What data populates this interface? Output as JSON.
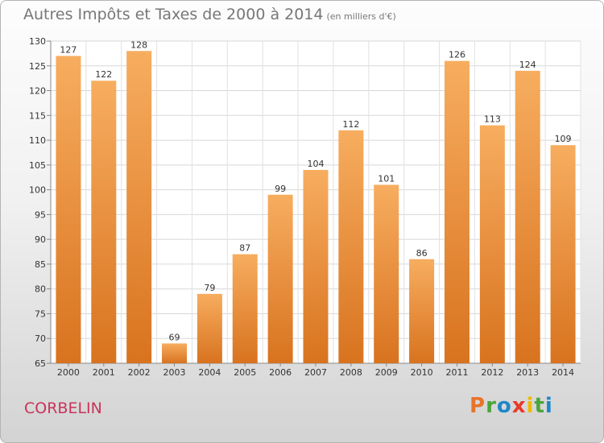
{
  "chart_data": {
    "type": "bar",
    "title": "Autres Impôts et Taxes de 2000 à 2014",
    "subtitle": "(en milliers d'€)",
    "categories": [
      "2000",
      "2001",
      "2002",
      "2003",
      "2004",
      "2005",
      "2006",
      "2007",
      "2008",
      "2009",
      "2010",
      "2011",
      "2012",
      "2013",
      "2014"
    ],
    "values": [
      127,
      122,
      128,
      69,
      79,
      87,
      99,
      104,
      112,
      101,
      86,
      126,
      113,
      124,
      109
    ],
    "ylim": [
      65,
      130
    ],
    "yticks": [
      65,
      70,
      75,
      80,
      85,
      90,
      95,
      100,
      105,
      110,
      115,
      120,
      125,
      130
    ],
    "xlabel": "",
    "ylabel": "",
    "grid": true,
    "legend": "none",
    "colors": {
      "bar": "#f0913c",
      "bar_light": "#f7ad5f",
      "bar_dark": "#d8731f"
    }
  },
  "footer": {
    "commune": "CORBELIN",
    "brand": "Proxiti",
    "brand_colors": [
      "#e8732a",
      "#4aa53c",
      "#1e88c8",
      "#e83a2a",
      "#f0b800",
      "#4aa53c",
      "#1e88c8"
    ]
  }
}
